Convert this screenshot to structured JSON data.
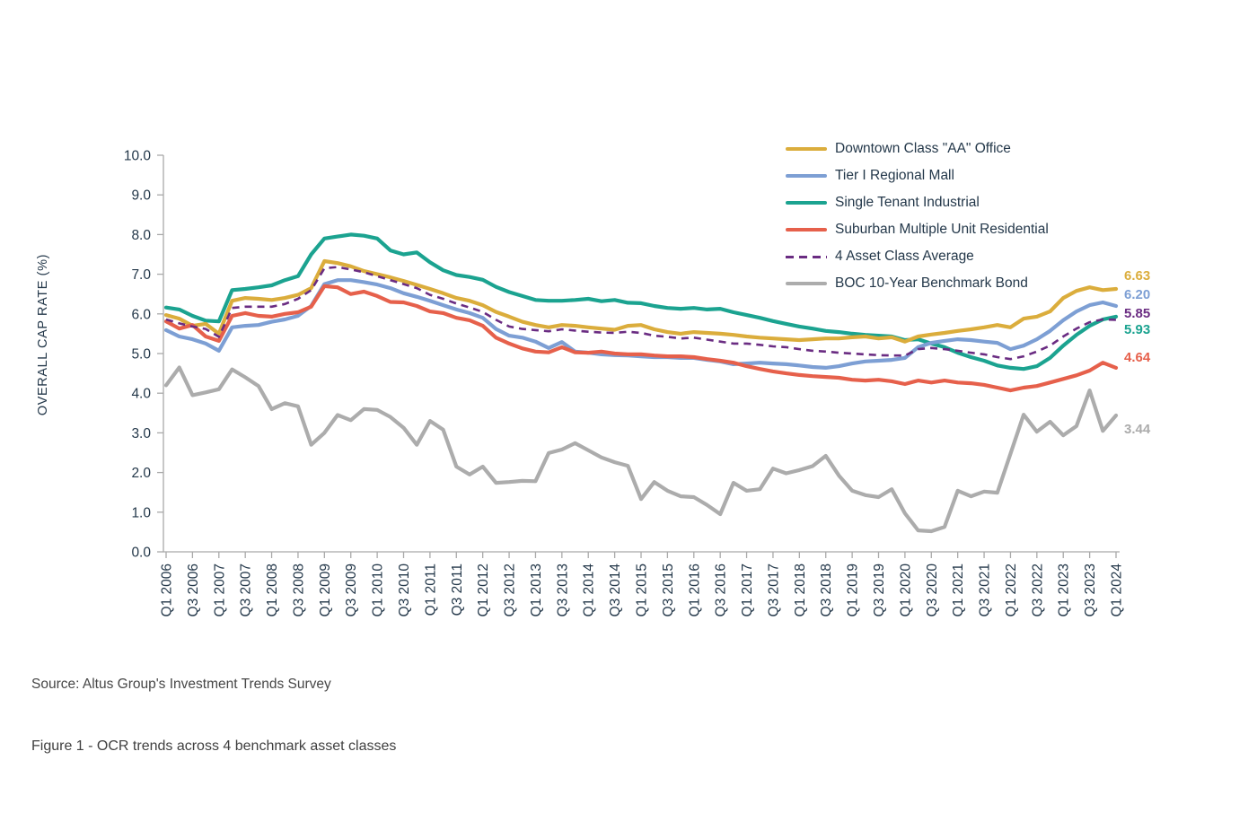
{
  "chart_data": {
    "type": "line",
    "title": "",
    "ylabel": "OVERALL CAP RATE (%)",
    "ylim": [
      0,
      10
    ],
    "ytick_labels": [
      "0.0",
      "1.0",
      "2.0",
      "3.0",
      "4.0",
      "5.0",
      "6.0",
      "7.0",
      "8.0",
      "9.0",
      "10.0"
    ],
    "xtick_labels": [
      "Q1 2006",
      "Q3 2006",
      "Q1 2007",
      "Q3 2007",
      "Q1 2008",
      "Q3 2008",
      "Q1 2009",
      "Q3 2009",
      "Q1 2010",
      "Q3 2010",
      "Q1 2011",
      "Q3 2011",
      "Q1 2012",
      "Q3 2012",
      "Q1 2013",
      "Q3 2013",
      "Q1 2014",
      "Q3 2014",
      "Q1 2015",
      "Q3 2015",
      "Q1 2016",
      "Q3 2016",
      "Q1 2017",
      "Q3 2017",
      "Q1 2018",
      "Q3 2018",
      "Q1 2019",
      "Q3 2019",
      "Q1 2020",
      "Q3 2020",
      "Q1 2021",
      "Q3 2021",
      "Q1 2022",
      "Q3 2022",
      "Q1 2023",
      "Q3 2023",
      "Q1 2024"
    ],
    "x_quarters_per_tick": 2,
    "grid": false,
    "legend_position": "top-right",
    "series": [
      {
        "name": "Downtown Class \"AA\" Office",
        "color": "#DBAD3C",
        "style": "solid",
        "end_label": "6.63",
        "values": [
          5.97,
          5.88,
          5.7,
          5.75,
          5.5,
          6.33,
          6.4,
          6.38,
          6.35,
          6.4,
          6.48,
          6.65,
          7.33,
          7.28,
          7.2,
          7.08,
          7.0,
          6.92,
          6.83,
          6.73,
          6.63,
          6.52,
          6.4,
          6.33,
          6.22,
          6.05,
          5.93,
          5.8,
          5.72,
          5.66,
          5.72,
          5.7,
          5.66,
          5.63,
          5.6,
          5.7,
          5.72,
          5.61,
          5.54,
          5.5,
          5.54,
          5.52,
          5.5,
          5.47,
          5.43,
          5.4,
          5.38,
          5.36,
          5.34,
          5.36,
          5.38,
          5.38,
          5.41,
          5.43,
          5.38,
          5.41,
          5.3,
          5.43,
          5.48,
          5.52,
          5.57,
          5.61,
          5.66,
          5.72,
          5.66,
          5.88,
          5.93,
          6.06,
          6.4,
          6.58,
          6.67,
          6.6,
          6.63
        ]
      },
      {
        "name": "Tier I Regional Mall",
        "color": "#7D9FD4",
        "style": "solid",
        "end_label": "6.20",
        "values": [
          5.59,
          5.43,
          5.36,
          5.25,
          5.07,
          5.66,
          5.7,
          5.72,
          5.8,
          5.86,
          5.95,
          6.2,
          6.75,
          6.85,
          6.85,
          6.8,
          6.74,
          6.65,
          6.52,
          6.43,
          6.33,
          6.22,
          6.11,
          6.02,
          5.9,
          5.62,
          5.45,
          5.4,
          5.3,
          5.14,
          5.29,
          5.05,
          5.02,
          4.98,
          4.96,
          4.95,
          4.93,
          4.91,
          4.91,
          4.89,
          4.89,
          4.84,
          4.8,
          4.73,
          4.75,
          4.77,
          4.75,
          4.73,
          4.7,
          4.66,
          4.64,
          4.68,
          4.75,
          4.8,
          4.82,
          4.84,
          4.89,
          5.16,
          5.27,
          5.32,
          5.36,
          5.34,
          5.3,
          5.27,
          5.11,
          5.2,
          5.36,
          5.57,
          5.84,
          6.06,
          6.22,
          6.29,
          6.2
        ]
      },
      {
        "name": "Single Tenant Industrial",
        "color": "#1BA390",
        "style": "solid",
        "end_label": "5.93",
        "values": [
          6.16,
          6.11,
          5.95,
          5.83,
          5.81,
          6.6,
          6.63,
          6.67,
          6.72,
          6.85,
          6.95,
          7.5,
          7.9,
          7.95,
          8.0,
          7.97,
          7.9,
          7.6,
          7.5,
          7.55,
          7.3,
          7.1,
          6.98,
          6.93,
          6.86,
          6.68,
          6.55,
          6.45,
          6.35,
          6.33,
          6.33,
          6.35,
          6.38,
          6.32,
          6.35,
          6.28,
          6.27,
          6.2,
          6.15,
          6.13,
          6.15,
          6.11,
          6.13,
          6.04,
          5.97,
          5.9,
          5.82,
          5.75,
          5.68,
          5.63,
          5.57,
          5.54,
          5.5,
          5.47,
          5.45,
          5.43,
          5.34,
          5.36,
          5.25,
          5.16,
          5.02,
          4.91,
          4.82,
          4.7,
          4.64,
          4.61,
          4.68,
          4.89,
          5.2,
          5.47,
          5.7,
          5.86,
          5.93
        ]
      },
      {
        "name": "Suburban Multiple Unit Residential",
        "color": "#E6604B",
        "style": "solid",
        "end_label": "4.64",
        "values": [
          5.81,
          5.63,
          5.72,
          5.43,
          5.32,
          5.95,
          6.02,
          5.95,
          5.93,
          6.0,
          6.04,
          6.18,
          6.7,
          6.67,
          6.5,
          6.56,
          6.45,
          6.3,
          6.29,
          6.2,
          6.06,
          6.02,
          5.9,
          5.84,
          5.7,
          5.4,
          5.25,
          5.13,
          5.05,
          5.03,
          5.16,
          5.03,
          5.02,
          5.05,
          5.0,
          4.98,
          4.98,
          4.95,
          4.93,
          4.93,
          4.91,
          4.86,
          4.82,
          4.77,
          4.68,
          4.61,
          4.55,
          4.5,
          4.46,
          4.43,
          4.41,
          4.39,
          4.34,
          4.32,
          4.34,
          4.3,
          4.23,
          4.32,
          4.27,
          4.32,
          4.27,
          4.25,
          4.21,
          4.14,
          4.07,
          4.14,
          4.18,
          4.27,
          4.36,
          4.45,
          4.57,
          4.77,
          4.64
        ]
      },
      {
        "name": "4 Asset Class Average",
        "color": "#6A2C82",
        "style": "dashed",
        "end_label": "5.85",
        "values": [
          5.86,
          5.76,
          5.68,
          5.62,
          5.42,
          6.15,
          6.18,
          6.18,
          6.18,
          6.25,
          6.38,
          6.6,
          7.15,
          7.18,
          7.12,
          7.05,
          6.95,
          6.85,
          6.75,
          6.65,
          6.48,
          6.38,
          6.26,
          6.16,
          6.05,
          5.85,
          5.68,
          5.62,
          5.59,
          5.56,
          5.61,
          5.58,
          5.55,
          5.53,
          5.52,
          5.55,
          5.52,
          5.45,
          5.42,
          5.38,
          5.4,
          5.35,
          5.3,
          5.25,
          5.25,
          5.22,
          5.18,
          5.16,
          5.11,
          5.07,
          5.05,
          5.02,
          5.0,
          4.98,
          4.96,
          4.95,
          4.95,
          5.11,
          5.14,
          5.11,
          5.07,
          5.02,
          4.98,
          4.91,
          4.86,
          4.93,
          5.05,
          5.2,
          5.43,
          5.63,
          5.79,
          5.86,
          5.85
        ]
      },
      {
        "name": "BOC 10-Year Benchmark Bond",
        "color": "#ACACAC",
        "style": "solid",
        "end_label": "3.44",
        "values": [
          4.2,
          4.65,
          3.95,
          4.02,
          4.1,
          4.6,
          4.4,
          4.18,
          3.6,
          3.75,
          3.67,
          2.7,
          3.0,
          3.45,
          3.32,
          3.6,
          3.58,
          3.4,
          3.13,
          2.7,
          3.3,
          3.08,
          2.15,
          1.95,
          2.15,
          1.74,
          1.76,
          1.79,
          1.78,
          2.49,
          2.58,
          2.74,
          2.56,
          2.38,
          2.26,
          2.17,
          1.33,
          1.76,
          1.54,
          1.4,
          1.38,
          1.18,
          0.95,
          1.74,
          1.54,
          1.58,
          2.1,
          1.98,
          2.06,
          2.16,
          2.42,
          1.92,
          1.54,
          1.43,
          1.38,
          1.58,
          0.97,
          0.54,
          0.52,
          0.63,
          1.54,
          1.4,
          1.52,
          1.49,
          2.47,
          3.46,
          3.03,
          3.28,
          2.94,
          3.17,
          4.07,
          3.05,
          3.44
        ]
      }
    ]
  },
  "source_note": "Source:  Altus Group's Investment Trends Survey",
  "caption": "Figure 1 - OCR trends across 4 benchmark asset classes"
}
